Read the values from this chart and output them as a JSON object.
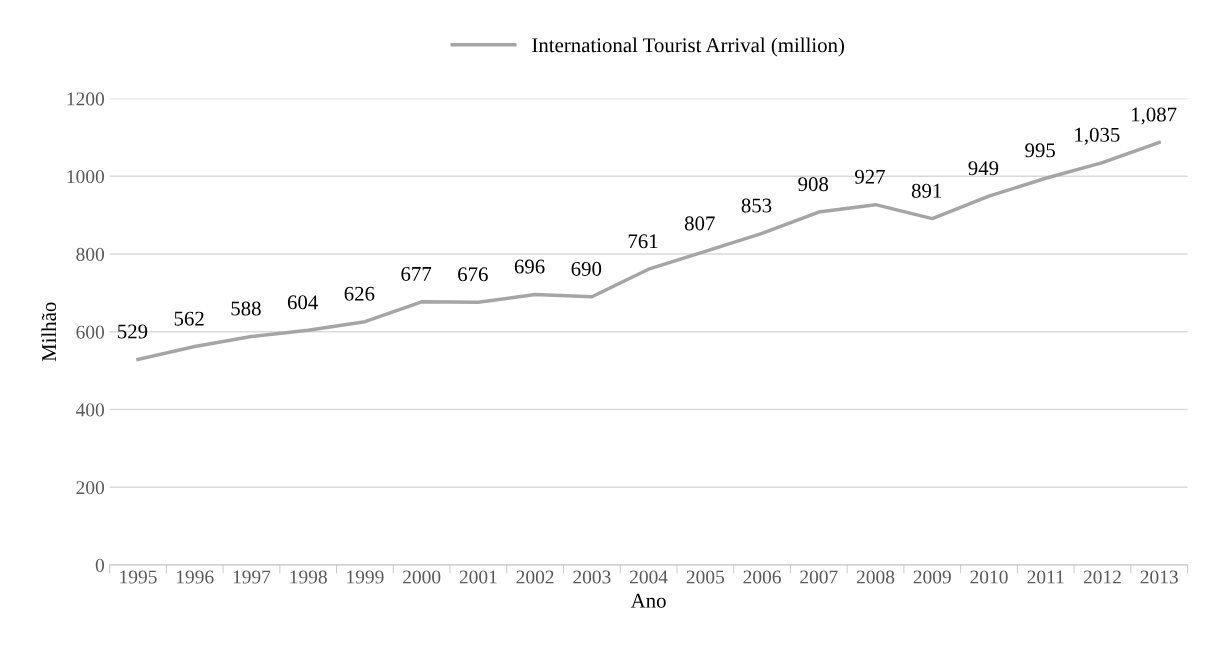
{
  "chart_data": {
    "type": "line",
    "xlabel": "Ano",
    "ylabel": "Milhão",
    "categories": [
      "1995",
      "1996",
      "1997",
      "1998",
      "1999",
      "2000",
      "2001",
      "2002",
      "2003",
      "2004",
      "2005",
      "2006",
      "2007",
      "2008",
      "2009",
      "2010",
      "2011",
      "2012",
      "2013"
    ],
    "series": [
      {
        "name": "International Tourist Arrival (million)",
        "color": "#a5a5a5",
        "values": [
          529,
          562,
          588,
          604,
          626,
          677,
          676,
          696,
          690,
          761,
          807,
          853,
          908,
          927,
          891,
          949,
          995,
          1035,
          1087
        ],
        "value_labels": [
          "529",
          "562",
          "588",
          "604",
          "626",
          "677",
          "676",
          "696",
          "690",
          "761",
          "807",
          "853",
          "908",
          "927",
          "891",
          "949",
          "995",
          "1,035",
          "1,087"
        ]
      }
    ],
    "ylim": [
      0,
      1200
    ],
    "yticks": [
      0,
      200,
      400,
      600,
      800,
      1000,
      1200
    ],
    "grid": "y",
    "legend": "top",
    "marker": "none",
    "line_style": "solid"
  }
}
